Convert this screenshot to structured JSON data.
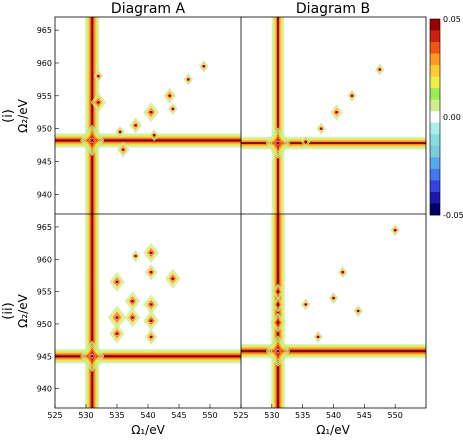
{
  "chart_data": {
    "type": "contour",
    "column_titles": [
      "Diagram A",
      "Diagram B"
    ],
    "row_labels": [
      "(i)",
      "(ii)"
    ],
    "xlabel": "Ω₁/eV",
    "ylabel": "Ω₂/eV",
    "xlim": [
      525,
      555
    ],
    "ylim": [
      937,
      967
    ],
    "x_ticks": [
      525,
      530,
      535,
      540,
      545,
      550
    ],
    "y_ticks": [
      940,
      945,
      950,
      955,
      960,
      965
    ],
    "colorbar": {
      "range": [
        -0.05,
        0.05
      ],
      "ticks": [
        {
          "value": 0.05,
          "label": "0.05"
        },
        {
          "value": 0.0,
          "label": "0.00"
        },
        {
          "value": -0.05,
          "label": "-0.05"
        }
      ],
      "colors": [
        "#000066",
        "#1a1aaa",
        "#3344dd",
        "#4477ee",
        "#55aaee",
        "#77ccdd",
        "#88dddd",
        "#aaeeee",
        "#ffffff",
        "#ccf08a",
        "#99ee55",
        "#eeee44",
        "#ffcc33",
        "#ff9922",
        "#ee5511",
        "#cc2211",
        "#990000"
      ]
    },
    "panels": [
      {
        "name": "A-i",
        "diagonal_peaks": [
          [
            531,
            948.2,
            1.0
          ],
          [
            535.5,
            949.5,
            0.35
          ],
          [
            538,
            950.5,
            0.4
          ],
          [
            540.5,
            952.5,
            0.6
          ],
          [
            543.5,
            955,
            0.45
          ],
          [
            546.5,
            957.5,
            0.25
          ],
          [
            549,
            959.5,
            0.25
          ],
          [
            532,
            954,
            0.6
          ],
          [
            532,
            958,
            0.3
          ],
          [
            536,
            946.8,
            0.4
          ],
          [
            541,
            949,
            0.3
          ],
          [
            544,
            953,
            0.25
          ]
        ],
        "sticks": [
          {
            "x": 531,
            "y": 948.2,
            "strength": 1.0
          }
        ]
      },
      {
        "name": "B-i",
        "diagonal_peaks": [
          [
            531,
            947.8,
            1.0
          ],
          [
            535.5,
            948,
            0.35
          ],
          [
            538,
            950,
            0.35
          ],
          [
            540.5,
            952.5,
            0.4
          ],
          [
            543,
            955,
            0.35
          ],
          [
            547.5,
            959,
            0.25
          ]
        ],
        "sticks": [
          {
            "x": 531,
            "y": 947.8,
            "strength": 0.85
          }
        ]
      },
      {
        "name": "A-ii",
        "diagonal_peaks": [
          [
            531,
            945,
            1.0
          ],
          [
            535,
            956.5,
            0.55
          ],
          [
            535,
            951,
            0.7
          ],
          [
            535,
            948.5,
            0.6
          ],
          [
            537.5,
            953.5,
            0.6
          ],
          [
            537.5,
            951,
            0.6
          ],
          [
            540.5,
            961,
            0.55
          ],
          [
            540.5,
            958,
            0.45
          ],
          [
            540.5,
            953,
            0.55
          ],
          [
            540.5,
            950.5,
            0.5
          ],
          [
            540.5,
            948,
            0.45
          ],
          [
            544,
            957,
            0.6
          ],
          [
            538,
            960.5,
            0.35
          ]
        ],
        "sticks": [
          {
            "x": 531,
            "y": 945,
            "strength": 1.0
          }
        ]
      },
      {
        "name": "B-ii",
        "diagonal_peaks": [
          [
            531,
            945.8,
            1.0
          ],
          [
            531,
            950.2,
            0.6
          ],
          [
            531,
            953,
            0.45
          ],
          [
            531,
            955,
            0.4
          ],
          [
            535.5,
            953,
            0.35
          ],
          [
            537.5,
            948,
            0.3
          ],
          [
            540,
            954,
            0.3
          ],
          [
            541.5,
            958,
            0.35
          ],
          [
            544,
            952,
            0.25
          ],
          [
            550,
            964.5,
            0.2
          ]
        ],
        "sticks": [
          {
            "x": 531,
            "y": 945.8,
            "strength": 0.95
          }
        ]
      }
    ]
  }
}
